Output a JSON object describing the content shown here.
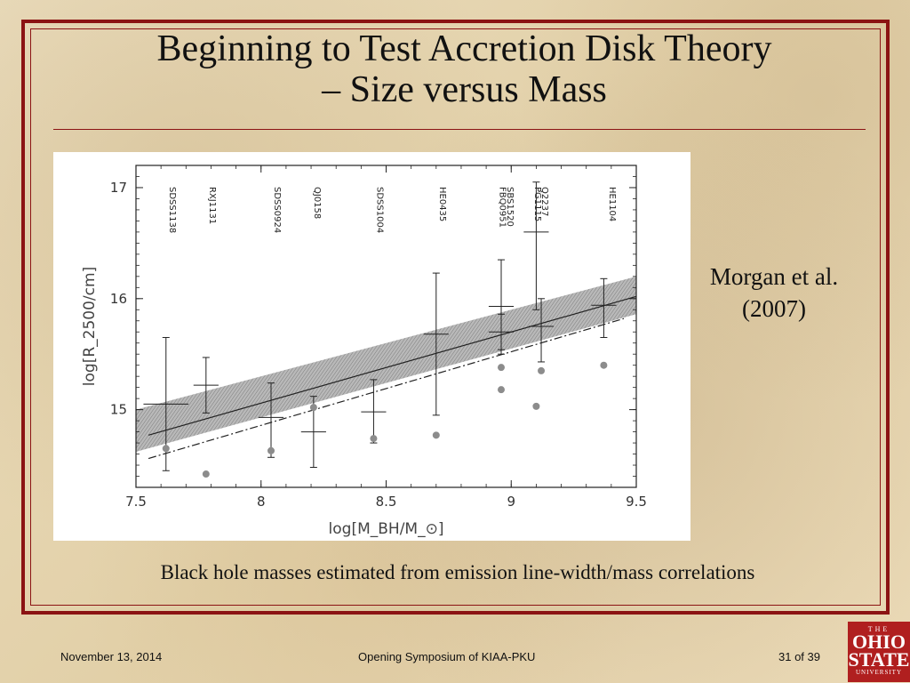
{
  "slide": {
    "title_line1": "Beginning to Test Accretion Disk Theory",
    "title_line2": "– Size versus Mass",
    "attribution_line1": "Morgan et al.",
    "attribution_line2": "(2007)",
    "caption": "Black hole masses estimated from emission line-width/mass correlations",
    "frame_color": "#8b1313"
  },
  "footer": {
    "date": "November 13, 2014",
    "event": "Opening Symposium of KIAA-PKU",
    "page": "31 of 39"
  },
  "logo": {
    "line1": "THE",
    "line2": "OHIO",
    "line3": "STATE",
    "line4": "UNIVERSITY",
    "color": "#b01f1f"
  },
  "chart_data": {
    "type": "scatter",
    "xlabel": "log[M_BH/M_⊙]",
    "ylabel": "log[R_2500/cm]",
    "xlim": [
      7.5,
      9.5
    ],
    "ylim": [
      14.3,
      17.2
    ],
    "x_ticks": [
      7.5,
      8,
      8.5,
      9,
      9.5
    ],
    "x_tick_labels": [
      "7.5",
      "8",
      "8.5",
      "9",
      "9.5"
    ],
    "y_ticks": [
      15,
      16,
      17
    ],
    "y_tick_labels": [
      "15",
      "16",
      "17"
    ],
    "objects": [
      {
        "name": "SDSS1138",
        "x": 7.62
      },
      {
        "name": "RXJ1131",
        "x": 7.78
      },
      {
        "name": "SDSS0924",
        "x": 8.04
      },
      {
        "name": "QJ0158",
        "x": 8.2
      },
      {
        "name": "SDSS1004",
        "x": 8.45
      },
      {
        "name": "HE0435",
        "x": 8.7
      },
      {
        "name": "FBQ0951",
        "x": 8.94
      },
      {
        "name": "SBS1520",
        "x": 8.97
      },
      {
        "name": "PG1115",
        "x": 9.08
      },
      {
        "name": "Q2237",
        "x": 9.11
      },
      {
        "name": "HE1104",
        "x": 9.38
      }
    ],
    "series": [
      {
        "type": "errorbars",
        "points": [
          {
            "x": 7.62,
            "y": 15.05,
            "y_low": 14.45,
            "y_high": 15.65,
            "xerr": 0.09
          },
          {
            "x": 7.78,
            "y": 15.22,
            "y_low": 14.97,
            "y_high": 15.47,
            "xerr": 0.05
          },
          {
            "x": 8.04,
            "y": 14.93,
            "y_low": 14.57,
            "y_high": 15.24,
            "xerr": 0.05
          },
          {
            "x": 8.21,
            "y": 14.8,
            "y_low": 14.48,
            "y_high": 15.12,
            "xerr": 0.05
          },
          {
            "x": 8.45,
            "y": 14.98,
            "y_low": 14.7,
            "y_high": 15.27,
            "xerr": 0.05
          },
          {
            "x": 8.7,
            "y": 15.68,
            "y_low": 14.95,
            "y_high": 16.23,
            "xerr": 0.05
          },
          {
            "x": 8.96,
            "y": 15.93,
            "y_low": 15.54,
            "y_high": 16.35,
            "xerr": 0.05
          },
          {
            "x": 8.96,
            "y": 15.7,
            "y_low": 15.5,
            "y_high": 15.86,
            "xerr": 0.05
          },
          {
            "x": 9.1,
            "y": 16.6,
            "y_low": 15.9,
            "y_high": 17.05,
            "xerr": 0.05
          },
          {
            "x": 9.12,
            "y": 15.75,
            "y_low": 15.43,
            "y_high": 16.0,
            "xerr": 0.05
          },
          {
            "x": 9.37,
            "y": 15.94,
            "y_low": 15.65,
            "y_high": 16.18,
            "xerr": 0.05
          }
        ]
      },
      {
        "type": "points",
        "points": [
          {
            "x": 7.62,
            "y": 14.65
          },
          {
            "x": 7.78,
            "y": 14.42
          },
          {
            "x": 8.04,
            "y": 14.63
          },
          {
            "x": 8.21,
            "y": 15.02
          },
          {
            "x": 8.45,
            "y": 14.74
          },
          {
            "x": 8.7,
            "y": 14.77
          },
          {
            "x": 8.96,
            "y": 15.38
          },
          {
            "x": 8.96,
            "y": 15.18
          },
          {
            "x": 9.1,
            "y": 15.03
          },
          {
            "x": 9.12,
            "y": 15.35
          },
          {
            "x": 9.37,
            "y": 15.4
          }
        ]
      },
      {
        "type": "fit-line",
        "x": [
          7.55,
          9.5
        ],
        "y": [
          14.77,
          16.02
        ]
      },
      {
        "type": "band",
        "x": [
          7.5,
          9.5
        ],
        "y_low": [
          14.62,
          15.86
        ],
        "y_high": [
          15.0,
          16.2
        ]
      },
      {
        "type": "theory-line",
        "x": [
          7.55,
          9.45
        ],
        "y": [
          14.56,
          15.82
        ]
      }
    ],
    "grid": false,
    "colors": {
      "band": "#9a9a9a",
      "points": "#888888",
      "lines": "#222222"
    }
  }
}
